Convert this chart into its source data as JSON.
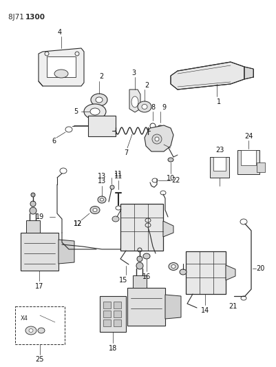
{
  "title_light": "8J71 ",
  "title_bold": "1300",
  "bg_color": "#ffffff",
  "line_color": "#2a2a2a",
  "fig_width": 4.01,
  "fig_height": 5.33,
  "dpi": 100
}
